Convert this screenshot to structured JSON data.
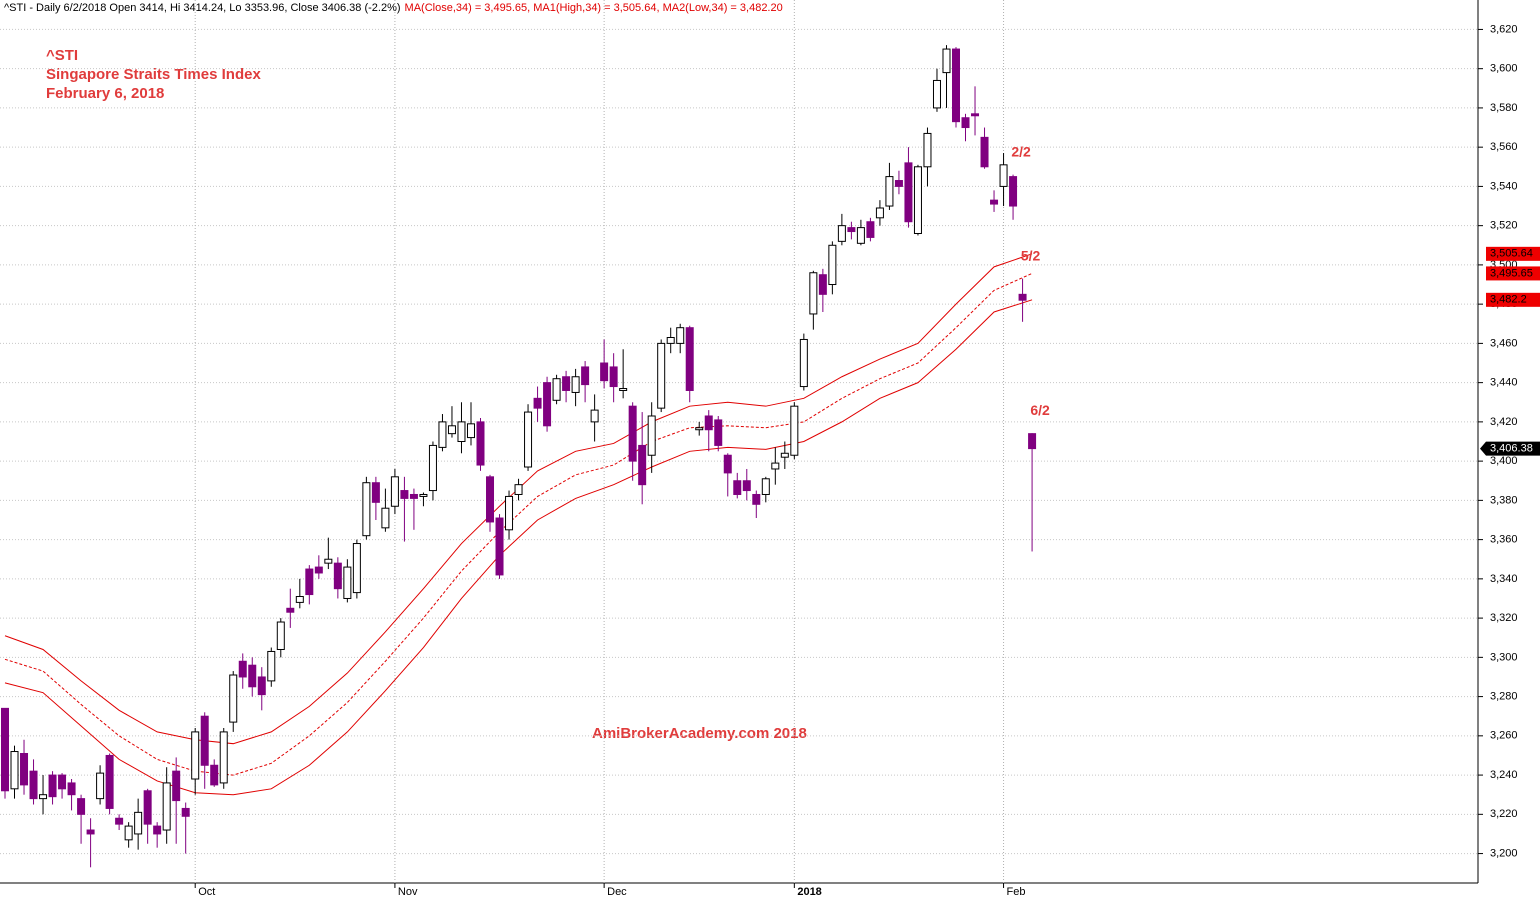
{
  "chart_data": {
    "type": "candlestick",
    "header": "^STI - Daily 6/2/2018 Open 3414, Hi 3414.24, Lo 3353.96, Close 3406.38 (-2.2%)",
    "header_ma": "MA(Close,34) = 3,495.65, MA1(High,34) = 3,505.64, MA2(Low,34) = 3,482.20",
    "title_lines": [
      "^STI",
      "Singapore Straits Times Index",
      "February 6, 2018"
    ],
    "watermark": "AmiBrokerAcademy.com  2018",
    "annotations": [
      "2/2",
      "5/2",
      "6/2"
    ],
    "last_close_label": "3,406.38",
    "up_color": "#ffffff",
    "down_color": "#800080",
    "ylim": [
      3185,
      3635
    ],
    "yticks": [
      {
        "value": 3200,
        "label": "3,200"
      },
      {
        "value": 3220,
        "label": "3,220"
      },
      {
        "value": 3240,
        "label": "3,240"
      },
      {
        "value": 3260,
        "label": "3,260"
      },
      {
        "value": 3280,
        "label": "3,280"
      },
      {
        "value": 3300,
        "label": "3,300"
      },
      {
        "value": 3320,
        "label": "3,320"
      },
      {
        "value": 3340,
        "label": "3,340"
      },
      {
        "value": 3360,
        "label": "3,360"
      },
      {
        "value": 3380,
        "label": "3,380"
      },
      {
        "value": 3400,
        "label": "3,400"
      },
      {
        "value": 3420,
        "label": "3,420"
      },
      {
        "value": 3440,
        "label": "3,440"
      },
      {
        "value": 3460,
        "label": "3,460"
      },
      {
        "value": 3480,
        "label": "3,480"
      },
      {
        "value": 3500,
        "label": "3,500"
      },
      {
        "value": 3520,
        "label": "3,520"
      },
      {
        "value": 3540,
        "label": "3,540"
      },
      {
        "value": 3560,
        "label": "3,560"
      },
      {
        "value": 3580,
        "label": "3,580"
      },
      {
        "value": 3600,
        "label": "3,600"
      },
      {
        "value": 3620,
        "label": "3,620"
      }
    ],
    "xticks": [
      {
        "value": 20,
        "label": "Oct"
      },
      {
        "value": 41,
        "label": "Nov"
      },
      {
        "value": 63,
        "label": "Dec"
      },
      {
        "value": 83,
        "label": "2018"
      },
      {
        "value": 105,
        "label": "Feb"
      }
    ],
    "grid": true,
    "ohlc": [
      [
        3274,
        3274,
        3228,
        3232
      ],
      [
        3233,
        3255,
        3228,
        3252
      ],
      [
        3251,
        3258,
        3230,
        3235
      ],
      [
        3242,
        3248,
        3225,
        3228
      ],
      [
        3228,
        3240,
        3220,
        3230
      ],
      [
        3240,
        3242,
        3225,
        3229
      ],
      [
        3240,
        3241,
        3228,
        3233
      ],
      [
        3236,
        3238,
        3222,
        3230
      ],
      [
        3228,
        3230,
        3205,
        3220
      ],
      [
        3212,
        3218,
        3193,
        3210
      ],
      [
        3228,
        3245,
        3225,
        3241
      ],
      [
        3250,
        3251,
        3220,
        3223
      ],
      [
        3218,
        3220,
        3212,
        3215
      ],
      [
        3207,
        3216,
        3203,
        3214
      ],
      [
        3210,
        3228,
        3202,
        3221
      ],
      [
        3232,
        3233,
        3205,
        3215
      ],
      [
        3214,
        3216,
        3203,
        3210
      ],
      [
        3212,
        3244,
        3205,
        3236
      ],
      [
        3242,
        3249,
        3205,
        3227
      ],
      [
        3223,
        3226,
        3200,
        3219
      ],
      [
        3238,
        3264,
        3230,
        3262
      ],
      [
        3270,
        3272,
        3233,
        3245
      ],
      [
        3245,
        3248,
        3234,
        3235
      ],
      [
        3236,
        3264,
        3233,
        3262
      ],
      [
        3267,
        3293,
        3262,
        3291
      ],
      [
        3298,
        3302,
        3284,
        3290
      ],
      [
        3296,
        3300,
        3280,
        3285
      ],
      [
        3290,
        3295,
        3273,
        3281
      ],
      [
        3288,
        3305,
        3285,
        3303
      ],
      [
        3304,
        3320,
        3300,
        3318
      ],
      [
        3325,
        3335,
        3315,
        3323
      ],
      [
        3328,
        3340,
        3325,
        3331
      ],
      [
        3345,
        3347,
        3327,
        3332
      ],
      [
        3346,
        3352,
        3340,
        3343
      ],
      [
        3348,
        3361,
        3345,
        3350
      ],
      [
        3348,
        3351,
        3330,
        3335
      ],
      [
        3330,
        3350,
        3328,
        3346
      ],
      [
        3333,
        3360,
        3330,
        3358
      ],
      [
        3362,
        3392,
        3360,
        3389
      ],
      [
        3389,
        3392,
        3370,
        3379
      ],
      [
        3366,
        3386,
        3364,
        3376
      ],
      [
        3377,
        3396,
        3373,
        3392
      ],
      [
        3385,
        3392,
        3359,
        3381
      ],
      [
        3383,
        3386,
        3365,
        3381
      ],
      [
        3382,
        3384,
        3377,
        3383
      ],
      [
        3385,
        3410,
        3380,
        3408
      ],
      [
        3407,
        3424,
        3405,
        3420
      ],
      [
        3414,
        3428,
        3412,
        3418
      ],
      [
        3410,
        3430,
        3404,
        3420
      ],
      [
        3412,
        3430,
        3408,
        3419
      ],
      [
        3420,
        3422,
        3395,
        3398
      ],
      [
        3392,
        3393,
        3364,
        3369
      ],
      [
        3371,
        3373,
        3340,
        3342
      ],
      [
        3365,
        3385,
        3360,
        3382
      ],
      [
        3383,
        3391,
        3380,
        3388
      ],
      [
        3397,
        3429,
        3395,
        3425
      ],
      [
        3432,
        3438,
        3420,
        3427
      ],
      [
        3440,
        3443,
        3415,
        3418
      ],
      [
        3431,
        3444,
        3429,
        3442
      ],
      [
        3443,
        3446,
        3430,
        3436
      ],
      [
        3435,
        3447,
        3428,
        3443
      ],
      [
        3448,
        3451,
        3430,
        3439
      ],
      [
        3420,
        3434,
        3410,
        3426
      ],
      [
        3450,
        3462,
        3437,
        3441
      ],
      [
        3448,
        3455,
        3430,
        3438
      ],
      [
        3436,
        3457,
        3432,
        3437
      ],
      [
        3428,
        3430,
        3390,
        3400
      ],
      [
        3408,
        3425,
        3378,
        3388
      ],
      [
        3403,
        3430,
        3394,
        3423
      ],
      [
        3427,
        3462,
        3425,
        3460
      ],
      [
        3460,
        3468,
        3455,
        3463
      ],
      [
        3460,
        3470,
        3455,
        3468
      ],
      [
        3468,
        3469,
        3430,
        3436
      ],
      [
        3416,
        3420,
        3413,
        3417
      ],
      [
        3423,
        3426,
        3405,
        3416
      ],
      [
        3421,
        3423,
        3405,
        3408
      ],
      [
        3403,
        3404,
        3382,
        3394
      ],
      [
        3390,
        3394,
        3381,
        3383
      ],
      [
        3390,
        3396,
        3380,
        3385
      ],
      [
        3383,
        3385,
        3371,
        3378
      ],
      [
        3383,
        3392,
        3379,
        3391
      ],
      [
        3396,
        3407,
        3388,
        3399
      ],
      [
        3402,
        3410,
        3396,
        3404
      ],
      [
        3403,
        3430,
        3401,
        3428
      ],
      [
        3438,
        3465,
        3436,
        3462
      ],
      [
        3475,
        3497,
        3467,
        3496
      ],
      [
        3495,
        3498,
        3476,
        3485
      ],
      [
        3490,
        3512,
        3485,
        3510
      ],
      [
        3512,
        3526,
        3510,
        3520
      ],
      [
        3519,
        3522,
        3513,
        3517
      ],
      [
        3511,
        3523,
        3510,
        3519
      ],
      [
        3522,
        3524,
        3512,
        3514
      ],
      [
        3524,
        3533,
        3520,
        3529
      ],
      [
        3530,
        3552,
        3528,
        3545
      ],
      [
        3543,
        3548,
        3536,
        3540
      ],
      [
        3552,
        3560,
        3519,
        3522
      ],
      [
        3516,
        3551,
        3515,
        3550
      ],
      [
        3550,
        3570,
        3540,
        3567
      ],
      [
        3580,
        3600,
        3578,
        3594
      ],
      [
        3598,
        3612,
        3580,
        3610
      ],
      [
        3610,
        3611,
        3570,
        3573
      ],
      [
        3575,
        3577,
        3563,
        3570
      ],
      [
        3577,
        3591,
        3566,
        3576
      ],
      [
        3565,
        3570,
        3549,
        3550
      ],
      [
        3533,
        3538,
        3527,
        3531
      ],
      [
        3540,
        3557,
        3530,
        3551
      ],
      [
        3545,
        3546,
        3523,
        3530
      ],
      [
        3485,
        3493,
        3471,
        3482
      ],
      [
        3414,
        3414.24,
        3353.96,
        3406.38
      ]
    ],
    "series": [
      {
        "name": "MA1(High,34)",
        "color": "#e00000",
        "dash": false,
        "last_label": "3,505.64",
        "x": [
          0,
          4,
          8,
          12,
          16,
          20,
          24,
          28,
          32,
          36,
          40,
          44,
          48,
          52,
          56,
          60,
          64,
          68,
          72,
          76,
          80,
          84,
          88,
          92,
          96,
          100,
          104,
          108
        ],
        "values": [
          3311,
          3304,
          3288,
          3273,
          3262,
          3258,
          3256,
          3262,
          3275,
          3292,
          3313,
          3335,
          3358,
          3377,
          3395,
          3405,
          3409,
          3420,
          3428,
          3430,
          3428,
          3432,
          3443,
          3452,
          3460,
          3480,
          3499,
          3505.64
        ]
      },
      {
        "name": "MA(Close,34)",
        "color": "#e00000",
        "dash": true,
        "last_label": "3,495.65",
        "x": [
          0,
          4,
          8,
          12,
          16,
          20,
          24,
          28,
          32,
          36,
          40,
          44,
          48,
          52,
          56,
          60,
          64,
          68,
          72,
          76,
          80,
          84,
          88,
          92,
          96,
          100,
          104,
          108
        ],
        "values": [
          3299,
          3293,
          3276,
          3260,
          3248,
          3242,
          3240,
          3246,
          3260,
          3277,
          3298,
          3320,
          3344,
          3364,
          3382,
          3393,
          3398,
          3410,
          3417,
          3418,
          3417,
          3420,
          3432,
          3442,
          3450,
          3468,
          3487,
          3495.65
        ]
      },
      {
        "name": "MA2(Low,34)",
        "color": "#e00000",
        "dash": false,
        "last_label": "3,482.2",
        "x": [
          0,
          4,
          8,
          12,
          16,
          20,
          24,
          28,
          32,
          36,
          40,
          44,
          48,
          52,
          56,
          60,
          64,
          68,
          72,
          76,
          80,
          84,
          88,
          92,
          96,
          100,
          104,
          108
        ],
        "values": [
          3287,
          3282,
          3265,
          3248,
          3237,
          3231,
          3230,
          3233,
          3245,
          3262,
          3283,
          3305,
          3330,
          3352,
          3370,
          3381,
          3388,
          3397,
          3405,
          3407,
          3406,
          3410,
          3420,
          3432,
          3440,
          3457,
          3476,
          3482.2
        ]
      }
    ]
  }
}
